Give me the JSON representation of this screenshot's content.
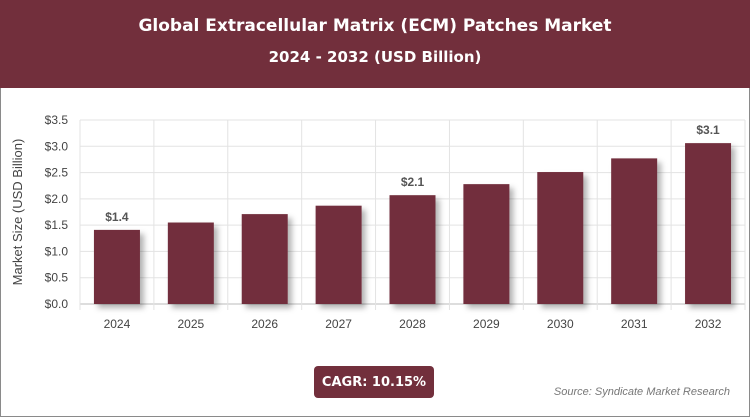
{
  "header": {
    "title": "Global Extracellular Matrix (ECM) Patches Market",
    "subtitle": "2024 - 2032 (USD Billion)"
  },
  "chart_data": {
    "type": "bar",
    "title": "Global Extracellular Matrix (ECM) Patches Market",
    "subtitle": "2024 - 2032 (USD Billion)",
    "ylabel": "Market Size (USD Billion)",
    "xlabel": "",
    "categories": [
      "2024",
      "2025",
      "2026",
      "2027",
      "2028",
      "2029",
      "2030",
      "2031",
      "2032"
    ],
    "values": [
      1.41,
      1.55,
      1.71,
      1.87,
      2.07,
      2.28,
      2.51,
      2.77,
      3.06
    ],
    "data_labels": {
      "0": "$1.4",
      "4": "$2.1",
      "8": "$3.1"
    },
    "ylim": [
      0,
      3.5
    ],
    "yticks": [
      "$0.0",
      "$0.5",
      "$1.0",
      "$1.5",
      "$2.0",
      "$2.5",
      "$3.0",
      "$3.5"
    ],
    "grid": true,
    "bar_color": "#722f3c"
  },
  "footer": {
    "cagr": "CAGR: 10.15%",
    "source": "Source: Syndicate Market Research"
  }
}
